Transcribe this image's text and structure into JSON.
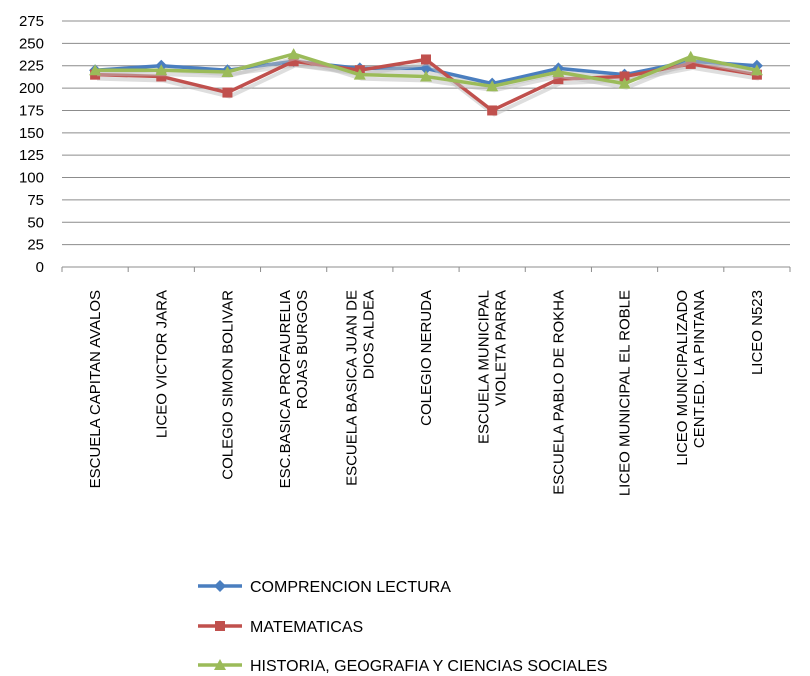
{
  "chart_data": {
    "type": "line",
    "title": "",
    "xlabel": "",
    "ylabel": "",
    "ylim": [
      0,
      275
    ],
    "yticks": [
      0,
      25,
      50,
      75,
      100,
      125,
      150,
      175,
      200,
      225,
      250,
      275
    ],
    "grid": "horizontal",
    "legend_position": "bottom",
    "categories": [
      [
        "ESCUELA CAPITAN AVALOS"
      ],
      [
        "LICEO VICTOR JARA"
      ],
      [
        "COLEGIO SIMON BOLIVAR"
      ],
      [
        "ESC.BASICA PROFAURELIA",
        "ROJAS BURGOS"
      ],
      [
        "ESCUELA BASICA JUAN DE",
        "DIOS ALDEA"
      ],
      [
        "COLEGIO NERUDA"
      ],
      [
        "ESCUELA MUNICIPAL",
        "VIOLETA PARRA"
      ],
      [
        "ESCUELA PABLO DE ROKHA"
      ],
      [
        "LICEO MUNICIPAL EL ROBLE"
      ],
      [
        "LICEO MUNICIPALIZADO",
        "CENT.ED. LA PINTANA"
      ],
      [
        "LICEO N523"
      ]
    ],
    "series": [
      {
        "name": "COMPRENCION LECTURA",
        "color": "#4a7ebf",
        "marker": "diamond",
        "values": [
          220,
          225,
          220,
          230,
          222,
          222,
          205,
          222,
          215,
          230,
          225
        ]
      },
      {
        "name": "MATEMATICAS",
        "color": "#c0504d",
        "marker": "square",
        "values": [
          215,
          213,
          195,
          230,
          220,
          232,
          175,
          210,
          213,
          227,
          215
        ]
      },
      {
        "name": "HISTORIA, GEOGRAFIA Y CIENCIAS SOCIALES",
        "color": "#9bbb59",
        "marker": "triangle",
        "values": [
          220,
          220,
          218,
          238,
          215,
          213,
          202,
          218,
          205,
          235,
          220
        ]
      }
    ]
  }
}
